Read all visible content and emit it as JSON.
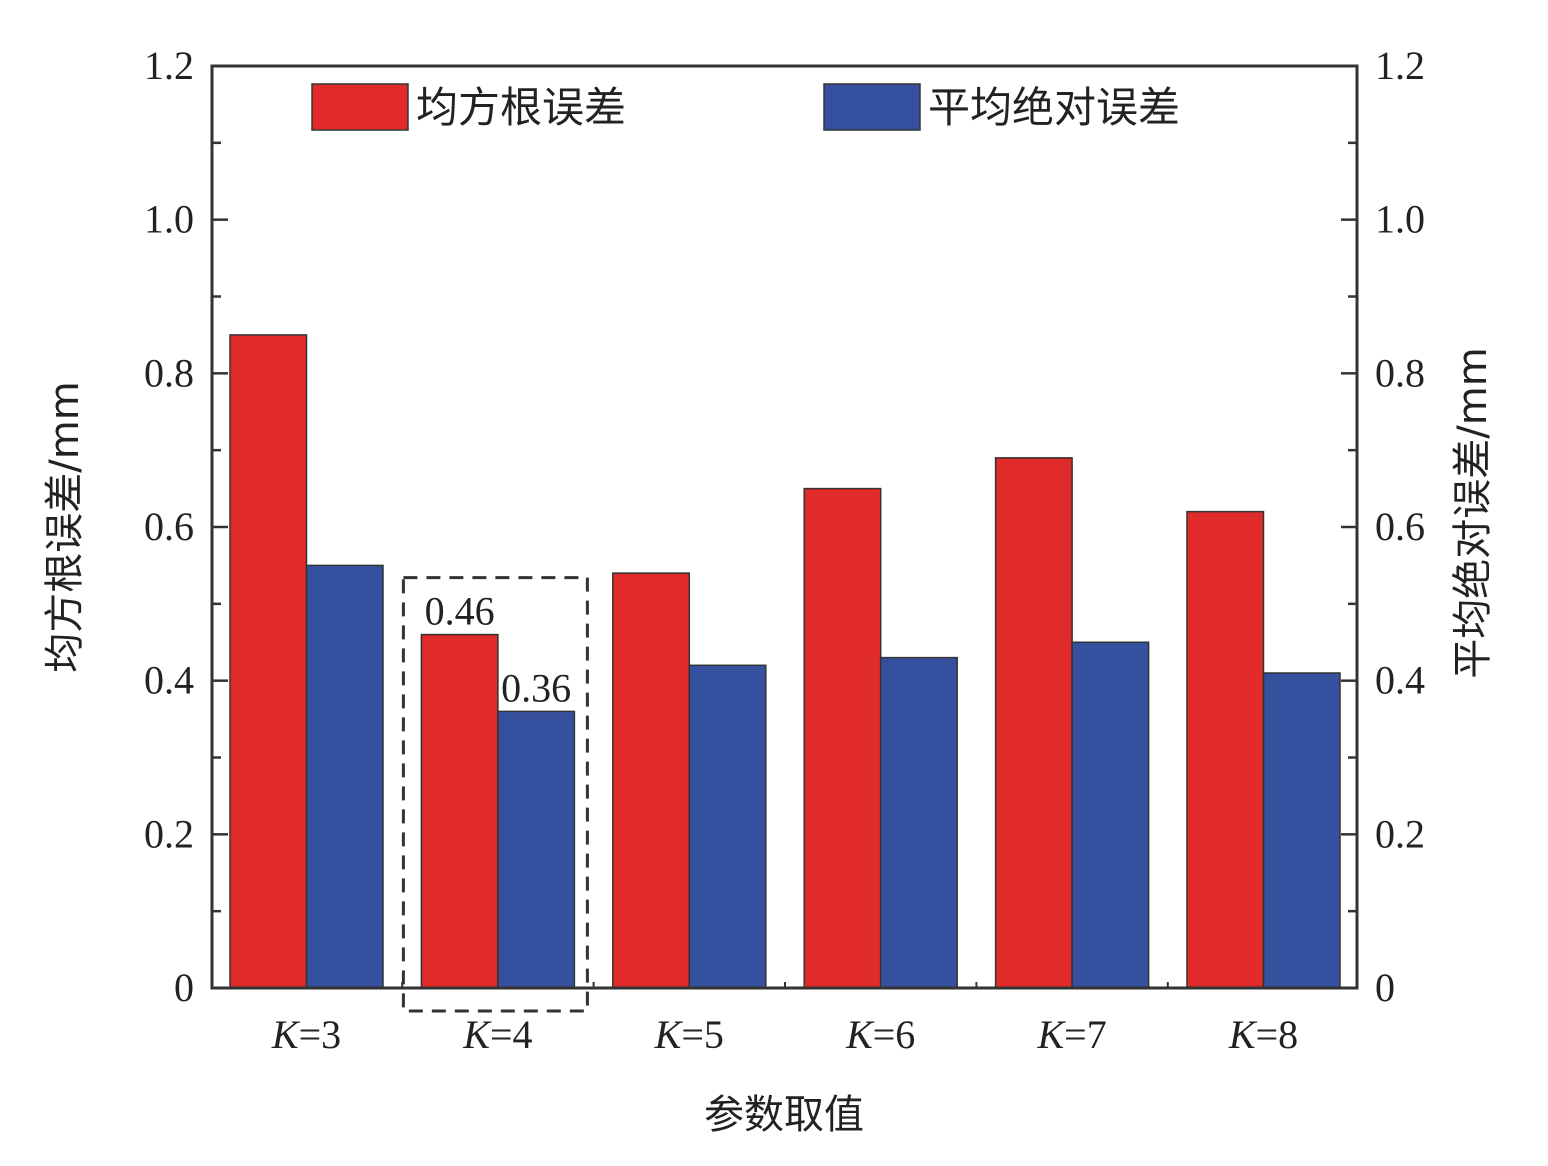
{
  "chart_data": {
    "type": "bar",
    "categories": [
      "K=3",
      "K=4",
      "K=5",
      "K=6",
      "K=7",
      "K=8"
    ],
    "category_parts": [
      {
        "var": "K",
        "rest": "=3"
      },
      {
        "var": "K",
        "rest": "=4"
      },
      {
        "var": "K",
        "rest": "=5"
      },
      {
        "var": "K",
        "rest": "=6"
      },
      {
        "var": "K",
        "rest": "=7"
      },
      {
        "var": "K",
        "rest": "=8"
      }
    ],
    "series": [
      {
        "name": "均方根误差",
        "values": [
          0.85,
          0.46,
          0.54,
          0.65,
          0.69,
          0.62
        ],
        "color": "#e12a2a",
        "axis": "left"
      },
      {
        "name": "平均绝对误差",
        "values": [
          0.55,
          0.36,
          0.42,
          0.43,
          0.45,
          0.41
        ],
        "color": "#35509f",
        "axis": "right"
      }
    ],
    "xlabel": "参数取值",
    "ylabel_left": "均方根误差/mm",
    "ylabel_right": "平均绝对误差/mm",
    "ylim": [
      0,
      1.2
    ],
    "yticks": [
      0,
      0.2,
      0.4,
      0.6,
      0.8,
      1.0,
      1.2
    ],
    "ytick_labels": [
      "0",
      "0.2",
      "0.4",
      "0.6",
      "0.8",
      "1.0",
      "1.2"
    ],
    "annotations": [
      {
        "category": "K=4",
        "series": 0,
        "text": "0.46"
      },
      {
        "category": "K=4",
        "series": 1,
        "text": "0.36"
      }
    ],
    "highlight": {
      "category": "K=4",
      "style": "dashed-box"
    },
    "legend_position": "top",
    "grid": false
  }
}
